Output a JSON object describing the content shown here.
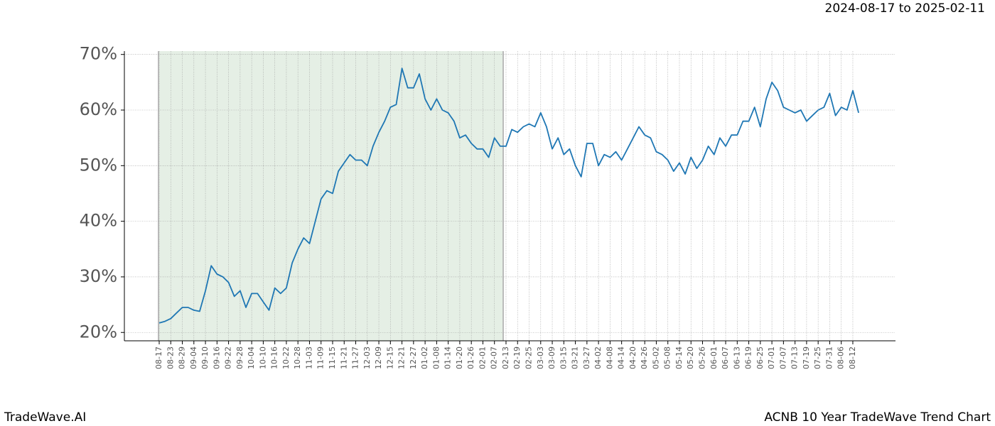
{
  "chart_data": {
    "type": "line",
    "header": "2024-08-17 to 2025-02-11",
    "footer_left": "TradeWave.AI",
    "footer_right": "ACNB 10 Year TradeWave Trend Chart",
    "categories": [
      "08-17",
      null,
      "08-23",
      null,
      "08-29",
      null,
      "09-04",
      null,
      "09-10",
      null,
      "09-16",
      null,
      "09-22",
      null,
      "09-28",
      null,
      "10-04",
      null,
      "10-10",
      null,
      "10-16",
      null,
      "10-22",
      null,
      "10-28",
      null,
      "11-03",
      null,
      "11-09",
      null,
      "11-15",
      null,
      "11-21",
      null,
      "11-27",
      null,
      "12-03",
      null,
      "12-09",
      null,
      "12-15",
      null,
      "12-21",
      null,
      "12-27",
      null,
      "01-02",
      null,
      "01-08",
      null,
      "01-14",
      null,
      "01-20",
      null,
      "01-26",
      null,
      "02-01",
      null,
      "02-07",
      null,
      "02-13",
      null,
      "02-19",
      null,
      "02-25",
      null,
      "03-03",
      null,
      "03-09",
      null,
      "03-15",
      null,
      "03-21",
      null,
      "03-27",
      null,
      "04-02",
      null,
      "04-08",
      null,
      "04-14",
      null,
      "04-20",
      null,
      "04-26",
      null,
      "05-02",
      null,
      "05-08",
      null,
      "05-14",
      null,
      "05-20",
      null,
      "05-26",
      null,
      "06-01",
      null,
      "06-07",
      null,
      "06-13",
      null,
      "06-19",
      null,
      "06-25",
      null,
      "07-01",
      null,
      "07-07",
      null,
      "07-13",
      null,
      "07-19",
      null,
      "07-25",
      null,
      "07-31",
      null,
      "08-06",
      null,
      "08-12",
      null
    ],
    "series": [
      {
        "color": "#1f77b4",
        "values": [
          21.7,
          22.0,
          22.5,
          23.5,
          24.5,
          24.5,
          24.0,
          23.8,
          27.5,
          32.0,
          30.5,
          30.0,
          29.0,
          26.5,
          27.5,
          24.5,
          27.0,
          27.0,
          25.5,
          24.0,
          28.0,
          27.0,
          28.0,
          32.5,
          35.0,
          37.0,
          36.0,
          40.0,
          44.0,
          45.5,
          45.0,
          49.0,
          50.5,
          52.0,
          51.0,
          51.0,
          50.0,
          53.5,
          56.0,
          58.0,
          60.5,
          61.0,
          67.5,
          64.0,
          64.0,
          66.5,
          62.0,
          60.0,
          62.0,
          60.0,
          59.5,
          58.0,
          55.0,
          55.5,
          54.0,
          53.0,
          53.0,
          51.5,
          55.0,
          53.5,
          53.5,
          56.5,
          56.0,
          57.0,
          57.5,
          57.0,
          59.5,
          57.0,
          53.0,
          55.0,
          52.0,
          53.0,
          50.0,
          48.0,
          54.0,
          54.0,
          50.0,
          52.0,
          51.5,
          52.5,
          51.0,
          53.0,
          55.0,
          57.0,
          55.5,
          55.0,
          52.5,
          52.0,
          51.0,
          49.0,
          50.5,
          48.5,
          51.5,
          49.5,
          51.0,
          53.5,
          52.0,
          55.0,
          53.5,
          55.5,
          55.5,
          58.0,
          58.0,
          60.5,
          57.0,
          62.0,
          65.0,
          63.5,
          60.5,
          60.0,
          59.5,
          60.0,
          58.0,
          59.0,
          60.0,
          60.5,
          63.0,
          59.0,
          60.5,
          60.0,
          63.5,
          59.5
        ]
      }
    ],
    "ylim": [
      18.5,
      70.6
    ],
    "yticks": [
      {
        "value": 20,
        "label": "20%"
      },
      {
        "value": 30,
        "label": "30%"
      },
      {
        "value": 40,
        "label": "40%"
      },
      {
        "value": 50,
        "label": "50%"
      },
      {
        "value": 60,
        "label": "60%"
      },
      {
        "value": 70,
        "label": "70%"
      }
    ],
    "grid": true
  }
}
